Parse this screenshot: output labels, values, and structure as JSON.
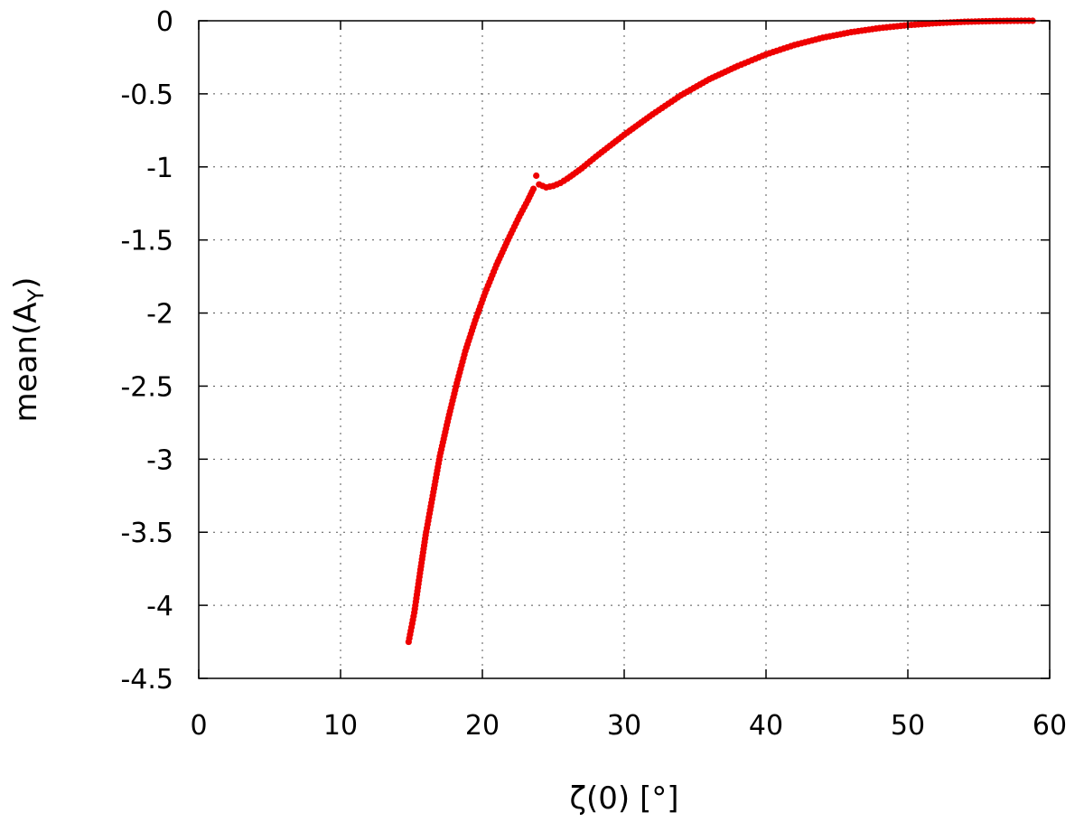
{
  "chart_data": {
    "type": "scatter",
    "xlabel": "ζ(0) [°]",
    "ylabel_main": "mean(A",
    "ylabel_sub": "Y",
    "ylabel_close": ")",
    "xlim": [
      0,
      60
    ],
    "ylim": [
      -4.5,
      0
    ],
    "xticks": [
      0,
      10,
      20,
      30,
      40,
      50,
      60
    ],
    "yticks": [
      0,
      -0.5,
      -1,
      -1.5,
      -2,
      -2.5,
      -3,
      -3.5,
      -4,
      -4.5
    ],
    "xtick_labels": [
      "0",
      "10",
      "20",
      "30",
      "40",
      "50",
      "60"
    ],
    "ytick_labels": [
      "0",
      "-0.5",
      "-1",
      "-1.5",
      "-2",
      "-2.5",
      "-3",
      "-3.5",
      "-4",
      "-4.5"
    ],
    "grid": true,
    "marker_color": "#ee0000",
    "series": [
      {
        "marker": "dot",
        "curve_segments": [
          [
            [
              14.8,
              -4.25
            ],
            [
              15.2,
              -4.05
            ],
            [
              15.6,
              -3.78
            ],
            [
              16.0,
              -3.52
            ],
            [
              16.5,
              -3.25
            ],
            [
              17.0,
              -2.98
            ],
            [
              17.6,
              -2.72
            ],
            [
              18.2,
              -2.48
            ],
            [
              18.8,
              -2.26
            ],
            [
              19.5,
              -2.05
            ],
            [
              20.2,
              -1.86
            ],
            [
              21.0,
              -1.67
            ],
            [
              21.8,
              -1.5
            ],
            [
              22.6,
              -1.34
            ],
            [
              23.2,
              -1.23
            ],
            [
              23.6,
              -1.15
            ]
          ],
          [
            [
              24.0,
              -1.12
            ],
            [
              24.5,
              -1.14
            ],
            [
              25.0,
              -1.13
            ],
            [
              25.5,
              -1.11
            ],
            [
              26.0,
              -1.08
            ],
            [
              27.0,
              -1.01
            ],
            [
              28.0,
              -0.93
            ],
            [
              30.0,
              -0.78
            ],
            [
              32.0,
              -0.64
            ],
            [
              34.0,
              -0.51
            ],
            [
              36.0,
              -0.4
            ],
            [
              38.0,
              -0.31
            ],
            [
              40.0,
              -0.23
            ],
            [
              42.0,
              -0.166
            ],
            [
              44.0,
              -0.116
            ],
            [
              46.0,
              -0.078
            ],
            [
              48.0,
              -0.05
            ],
            [
              50.0,
              -0.03
            ],
            [
              52.0,
              -0.016
            ],
            [
              54.0,
              -0.007
            ],
            [
              56.0,
              -0.002
            ],
            [
              58.0,
              0.0
            ],
            [
              58.8,
              0.0
            ]
          ]
        ],
        "outliers": [
          [
            23.8,
            -1.06
          ]
        ]
      }
    ]
  }
}
